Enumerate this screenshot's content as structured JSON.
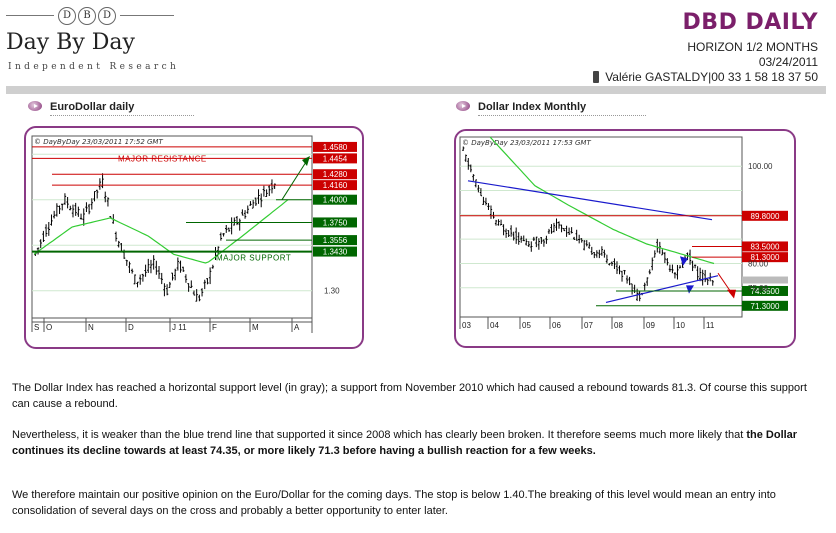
{
  "header": {
    "logo_letters": [
      "D",
      "B",
      "D"
    ],
    "logo_name": "Day By Day",
    "logo_sub": "Independent Research",
    "brand": "DBD DAILY",
    "horizon": "HORIZON 1/2 MONTHS",
    "date": "03/24/2011",
    "contact": "Valérie GASTALDY|00 33 1 58 18 37 50"
  },
  "colors": {
    "brand": "#7b1f6a",
    "frame": "#8a3a86",
    "resistance": "#cc0000",
    "support": "#006600",
    "ma": "#33cc33",
    "trend": "#1a1acc"
  },
  "panels": {
    "left_title": "EuroDollar daily",
    "right_title": "Dollar Index Monthly"
  },
  "chart_data": [
    {
      "type": "candlestick",
      "stamp": "© DayByDay 23/03/2011  17:52 GMT",
      "x_tick_labels": [
        "S",
        "O",
        "N",
        "D",
        "J 11",
        "F",
        "M",
        "A"
      ],
      "y_tick_labels": [
        "1.30"
      ],
      "levels": [
        {
          "label": "1.4580",
          "value": 1.458,
          "kind": "resistance"
        },
        {
          "label": "1.4454",
          "value": 1.4454,
          "kind": "resistance"
        },
        {
          "label": "1.4280",
          "value": 1.428,
          "kind": "resistance"
        },
        {
          "label": "1.4160",
          "value": 1.416,
          "kind": "resistance"
        },
        {
          "label": "1.4000",
          "value": 1.4,
          "kind": "support"
        },
        {
          "label": "1.3750",
          "value": 1.375,
          "kind": "support"
        },
        {
          "label": "1.3556",
          "value": 1.3556,
          "kind": "support"
        },
        {
          "label": "1.3430",
          "value": 1.343,
          "kind": "support"
        }
      ],
      "annotations": [
        "MAJOR RESISTANCE",
        "MAJOR SUPPORT"
      ],
      "ylim": [
        1.27,
        1.47
      ]
    },
    {
      "type": "candlestick",
      "stamp": "© DayByDay 23/03/2011  17:53 GMT",
      "x_tick_labels": [
        "03",
        "04",
        "05",
        "06",
        "07",
        "08",
        "09",
        "10",
        "11"
      ],
      "y_tick_labels": [
        "100.00",
        "80.00",
        "75.00"
      ],
      "levels": [
        {
          "label": "89.8000",
          "value": 89.8,
          "kind": "resistance"
        },
        {
          "label": "83.5000",
          "value": 83.5,
          "kind": "resistance"
        },
        {
          "label": "81.3000",
          "value": 81.3,
          "kind": "resistance"
        },
        {
          "label": "74.3500",
          "value": 74.35,
          "kind": "support"
        },
        {
          "label": "71.3000",
          "value": 71.3,
          "kind": "support"
        }
      ],
      "ylim": [
        69,
        106
      ]
    }
  ],
  "body": {
    "p1": "The Dollar Index has reached a horizontal support level (in gray); a support from November 2010 which had caused a rebound towards 81.3. Of course this support can cause a rebound.",
    "p2a": "Nevertheless, it is weaker than the blue trend line that supported it since 2008 which has clearly been broken. It therefore seems much more likely that ",
    "p2b": "the Dollar continues its decline towards at least 74.35, or more likely 71.3 before having a bullish reaction for a few weeks.",
    "p3": "We therefore maintain our positive opinion on the Euro/Dollar for the coming days. The stop is below 1.40.The breaking of this level would mean an entry into consolidation of several days on the cross and probably a better opportunity to enter later."
  }
}
